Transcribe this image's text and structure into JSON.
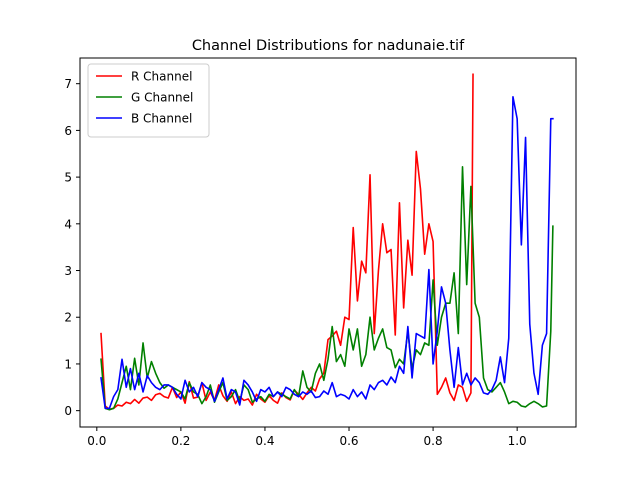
{
  "chart_data": {
    "type": "line",
    "title": "Channel Distributions for nadunaie.tif",
    "xlabel": "",
    "ylabel": "",
    "xlim": [
      -0.04,
      1.14
    ],
    "ylim": [
      -0.35,
      7.55
    ],
    "xticks": [
      0.0,
      0.2,
      0.4,
      0.6,
      0.8,
      1.0
    ],
    "xtick_labels": [
      "0.0",
      "0.2",
      "0.4",
      "0.6",
      "0.8",
      "1.0"
    ],
    "yticks": [
      0,
      1,
      2,
      3,
      4,
      5,
      6,
      7
    ],
    "ytick_labels": [
      "0",
      "1",
      "2",
      "3",
      "4",
      "5",
      "6",
      "7"
    ],
    "grid": false,
    "legend_position": "top-left",
    "series": [
      {
        "name": "R Channel",
        "color": "#ff0000",
        "x": [
          0.01,
          0.02,
          0.03,
          0.04,
          0.05,
          0.06,
          0.07,
          0.08,
          0.09,
          0.1,
          0.11,
          0.12,
          0.13,
          0.14,
          0.15,
          0.16,
          0.17,
          0.18,
          0.19,
          0.2,
          0.21,
          0.22,
          0.23,
          0.24,
          0.25,
          0.26,
          0.27,
          0.28,
          0.29,
          0.3,
          0.31,
          0.32,
          0.33,
          0.34,
          0.35,
          0.36,
          0.37,
          0.38,
          0.39,
          0.4,
          0.41,
          0.42,
          0.43,
          0.44,
          0.45,
          0.46,
          0.47,
          0.48,
          0.49,
          0.5,
          0.51,
          0.52,
          0.53,
          0.54,
          0.55,
          0.56,
          0.57,
          0.58,
          0.59,
          0.6,
          0.61,
          0.62,
          0.63,
          0.64,
          0.65,
          0.66,
          0.67,
          0.68,
          0.69,
          0.7,
          0.71,
          0.72,
          0.73,
          0.74,
          0.75,
          0.76,
          0.77,
          0.78,
          0.79,
          0.8,
          0.81,
          0.82,
          0.83,
          0.84,
          0.85,
          0.86,
          0.87,
          0.88,
          0.89,
          0.895
        ],
        "values": [
          1.65,
          0.1,
          0.03,
          0.05,
          0.12,
          0.1,
          0.18,
          0.15,
          0.24,
          0.16,
          0.27,
          0.29,
          0.22,
          0.34,
          0.37,
          0.3,
          0.27,
          0.5,
          0.28,
          0.4,
          0.16,
          0.62,
          0.27,
          0.29,
          0.6,
          0.22,
          0.4,
          0.22,
          0.55,
          0.32,
          0.2,
          0.4,
          0.15,
          0.3,
          0.22,
          0.25,
          0.12,
          0.35,
          0.25,
          0.18,
          0.32,
          0.22,
          0.16,
          0.38,
          0.28,
          0.23,
          0.44,
          0.35,
          0.24,
          0.38,
          0.5,
          0.42,
          0.68,
          0.8,
          1.52,
          1.6,
          1.7,
          1.4,
          2.0,
          1.95,
          3.92,
          2.35,
          3.2,
          2.95,
          5.05,
          1.65,
          3.0,
          4.0,
          3.38,
          3.45,
          1.62,
          4.45,
          2.2,
          3.65,
          2.9,
          5.55,
          4.75,
          3.35,
          4.0,
          3.62,
          0.35,
          0.5,
          0.7,
          0.38,
          0.22,
          0.55,
          0.5,
          0.2,
          0.38,
          7.2
        ]
      },
      {
        "name": "G Channel",
        "color": "#008000",
        "x": [
          0.01,
          0.02,
          0.03,
          0.04,
          0.05,
          0.06,
          0.07,
          0.08,
          0.09,
          0.1,
          0.11,
          0.12,
          0.13,
          0.14,
          0.15,
          0.16,
          0.17,
          0.18,
          0.19,
          0.2,
          0.21,
          0.22,
          0.23,
          0.24,
          0.25,
          0.26,
          0.27,
          0.28,
          0.29,
          0.3,
          0.31,
          0.32,
          0.33,
          0.34,
          0.35,
          0.36,
          0.37,
          0.38,
          0.39,
          0.4,
          0.41,
          0.42,
          0.43,
          0.44,
          0.45,
          0.46,
          0.47,
          0.48,
          0.49,
          0.5,
          0.51,
          0.52,
          0.53,
          0.54,
          0.55,
          0.56,
          0.57,
          0.58,
          0.59,
          0.6,
          0.61,
          0.62,
          0.63,
          0.64,
          0.65,
          0.66,
          0.67,
          0.68,
          0.69,
          0.7,
          0.71,
          0.72,
          0.73,
          0.74,
          0.75,
          0.76,
          0.77,
          0.78,
          0.79,
          0.8,
          0.81,
          0.82,
          0.83,
          0.84,
          0.85,
          0.86,
          0.87,
          0.88,
          0.89,
          0.9,
          0.91,
          0.92,
          0.93,
          0.94,
          0.95,
          0.96,
          0.97,
          0.98,
          0.99,
          1.0,
          1.01,
          1.02,
          1.03,
          1.04,
          1.05,
          1.06,
          1.07,
          1.08,
          1.085
        ],
        "values": [
          1.1,
          0.05,
          0.02,
          0.05,
          0.25,
          0.6,
          0.95,
          0.45,
          1.12,
          0.55,
          1.45,
          0.7,
          1.05,
          0.8,
          0.6,
          0.48,
          0.55,
          0.5,
          0.45,
          0.4,
          0.25,
          0.6,
          0.4,
          0.35,
          0.15,
          0.3,
          0.55,
          0.18,
          0.4,
          0.6,
          0.22,
          0.3,
          0.45,
          0.2,
          0.55,
          0.45,
          0.18,
          0.25,
          0.3,
          0.2,
          0.35,
          0.3,
          0.4,
          0.35,
          0.3,
          0.25,
          0.45,
          0.3,
          0.85,
          0.5,
          0.4,
          0.8,
          1.0,
          0.65,
          1.1,
          1.8,
          1.05,
          1.2,
          0.95,
          1.75,
          1.3,
          1.75,
          0.95,
          1.2,
          2.0,
          1.3,
          1.55,
          1.75,
          1.35,
          1.3,
          0.92,
          1.1,
          1.0,
          1.7,
          0.9,
          1.3,
          1.2,
          1.45,
          1.4,
          2.8,
          1.4,
          2.0,
          2.3,
          2.3,
          2.95,
          1.65,
          5.22,
          2.7,
          4.8,
          2.3,
          2.0,
          0.7,
          0.45,
          0.4,
          0.5,
          0.6,
          0.4,
          0.15,
          0.2,
          0.18,
          0.1,
          0.08,
          0.15,
          0.2,
          0.15,
          0.08,
          0.1,
          1.7,
          3.95
        ]
      },
      {
        "name": "B Channel",
        "color": "#0000ff",
        "x": [
          0.01,
          0.02,
          0.03,
          0.04,
          0.05,
          0.06,
          0.07,
          0.08,
          0.09,
          0.1,
          0.11,
          0.12,
          0.13,
          0.14,
          0.15,
          0.16,
          0.17,
          0.18,
          0.19,
          0.2,
          0.21,
          0.22,
          0.23,
          0.24,
          0.25,
          0.26,
          0.27,
          0.28,
          0.29,
          0.3,
          0.31,
          0.32,
          0.33,
          0.34,
          0.35,
          0.36,
          0.37,
          0.38,
          0.39,
          0.4,
          0.41,
          0.42,
          0.43,
          0.44,
          0.45,
          0.46,
          0.47,
          0.48,
          0.49,
          0.5,
          0.51,
          0.52,
          0.53,
          0.54,
          0.55,
          0.56,
          0.57,
          0.58,
          0.59,
          0.6,
          0.61,
          0.62,
          0.63,
          0.64,
          0.65,
          0.66,
          0.67,
          0.68,
          0.69,
          0.7,
          0.71,
          0.72,
          0.73,
          0.74,
          0.75,
          0.76,
          0.77,
          0.78,
          0.79,
          0.8,
          0.81,
          0.82,
          0.83,
          0.84,
          0.85,
          0.86,
          0.87,
          0.88,
          0.89,
          0.9,
          0.91,
          0.92,
          0.93,
          0.94,
          0.95,
          0.96,
          0.97,
          0.98,
          0.99,
          1.0,
          1.01,
          1.02,
          1.03,
          1.04,
          1.05,
          1.06,
          1.07,
          1.08,
          1.085
        ],
        "values": [
          0.7,
          0.05,
          0.05,
          0.3,
          0.45,
          1.1,
          0.5,
          0.9,
          0.45,
          0.8,
          0.4,
          0.75,
          0.6,
          0.5,
          0.45,
          0.55,
          0.55,
          0.5,
          0.35,
          0.25,
          0.65,
          0.4,
          0.5,
          0.3,
          0.6,
          0.5,
          0.45,
          0.2,
          0.45,
          0.7,
          0.25,
          0.45,
          0.4,
          0.12,
          0.65,
          0.55,
          0.4,
          0.2,
          0.45,
          0.4,
          0.5,
          0.3,
          0.4,
          0.3,
          0.5,
          0.45,
          0.35,
          0.3,
          0.4,
          0.35,
          0.42,
          0.28,
          0.3,
          0.42,
          0.35,
          0.6,
          0.3,
          0.35,
          0.32,
          0.25,
          0.45,
          0.3,
          0.4,
          0.25,
          0.55,
          0.45,
          0.6,
          0.65,
          0.55,
          0.72,
          0.6,
          0.95,
          0.8,
          1.8,
          0.7,
          1.65,
          1.6,
          1.55,
          3.02,
          1.0,
          1.7,
          2.65,
          2.3,
          1.3,
          0.5,
          1.35,
          0.55,
          0.8,
          0.55,
          0.7,
          0.6,
          0.38,
          0.35,
          0.45,
          0.65,
          1.15,
          0.6,
          1.55,
          6.72,
          6.25,
          3.55,
          5.85,
          1.85,
          0.8,
          0.35,
          1.4,
          1.65,
          6.25,
          6.25
        ]
      }
    ]
  }
}
